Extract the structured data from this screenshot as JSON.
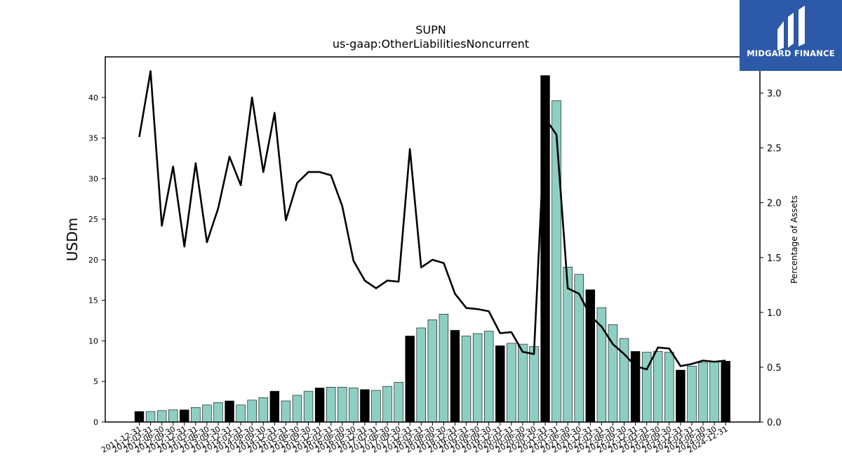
{
  "chart_data": {
    "type": "bar",
    "title": "SUPN",
    "subtitle": "us-gaap:OtherLiabilitiesNoncurrent",
    "ylabel": "USDm",
    "y2label": "Percentage of Assets",
    "ylim": [
      0,
      45
    ],
    "y2lim": [
      0,
      3.33
    ],
    "yticks": [
      "0",
      "5",
      "10",
      "15",
      "20",
      "25",
      "30",
      "35",
      "40"
    ],
    "y2ticks": [
      "0.0",
      "0.5",
      "1.0",
      "1.5",
      "2.0",
      "2.5",
      "3.0"
    ],
    "categories": [
      "2011-12-31",
      "2012-03-31",
      "2012-06-30",
      "2012-09-30",
      "2012-12-31",
      "2013-03-31",
      "2013-06-30",
      "2013-09-30",
      "2013-12-31",
      "2014-03-31",
      "2014-06-30",
      "2014-09-30",
      "2014-12-31",
      "2015-03-31",
      "2015-06-30",
      "2015-09-30",
      "2015-12-31",
      "2016-03-31",
      "2016-06-30",
      "2016-09-30",
      "2016-12-31",
      "2017-03-31",
      "2017-06-30",
      "2017-09-30",
      "2017-12-31",
      "2018-03-31",
      "2018-06-30",
      "2018-09-30",
      "2018-12-31",
      "2019-03-31",
      "2019-06-30",
      "2019-09-30",
      "2019-12-31",
      "2020-03-31",
      "2020-06-30",
      "2020-09-30",
      "2020-12-31",
      "2021-03-31",
      "2021-06-30",
      "2021-09-30",
      "2021-12-31",
      "2022-03-31",
      "2022-06-30",
      "2022-09-30",
      "2022-12-31",
      "2023-03-31",
      "2023-06-30",
      "2023-09-30",
      "2023-12-31",
      "2024-03-31",
      "2024-06-30",
      "2024-09-30",
      "2024-12-31"
    ],
    "series": [
      {
        "type": "bar",
        "values": [
          1.3,
          1.3,
          1.4,
          1.5,
          1.5,
          1.8,
          2.1,
          2.4,
          2.6,
          2.1,
          2.7,
          3.0,
          3.8,
          2.6,
          3.3,
          3.8,
          4.2,
          4.3,
          4.3,
          4.2,
          4.0,
          3.9,
          4.4,
          4.9,
          10.6,
          11.6,
          12.6,
          13.3,
          11.3,
          10.6,
          10.9,
          11.2,
          9.4,
          9.7,
          9.6,
          9.3,
          42.7,
          39.6,
          19.1,
          18.2,
          16.3,
          14.1,
          12.0,
          10.3,
          8.7,
          8.6,
          8.7,
          8.6,
          6.4,
          6.9,
          7.3,
          7.4,
          7.5
        ],
        "highlight_fill": "#000000",
        "default_fill": "#8ecfc3",
        "highlight_every": "12-31 quarters"
      },
      {
        "type": "line",
        "axis": "right",
        "color": "#000000",
        "values": [
          2.6,
          3.2,
          1.79,
          2.33,
          1.6,
          2.36,
          1.64,
          1.95,
          2.42,
          2.16,
          2.96,
          2.28,
          2.82,
          1.84,
          2.18,
          2.28,
          2.28,
          2.25,
          1.97,
          1.47,
          1.29,
          1.22,
          1.29,
          1.28,
          2.49,
          1.41,
          1.48,
          1.45,
          1.17,
          1.04,
          1.03,
          1.01,
          0.81,
          0.82,
          0.64,
          0.62,
          2.77,
          2.62,
          1.22,
          1.17,
          0.97,
          0.87,
          0.71,
          0.62,
          0.51,
          0.48,
          0.68,
          0.67,
          0.51,
          0.53,
          0.56,
          0.55,
          0.56
        ]
      }
    ]
  },
  "logo": {
    "text": "MIDGARD FINANCE",
    "bg": "#2d5aa8"
  }
}
